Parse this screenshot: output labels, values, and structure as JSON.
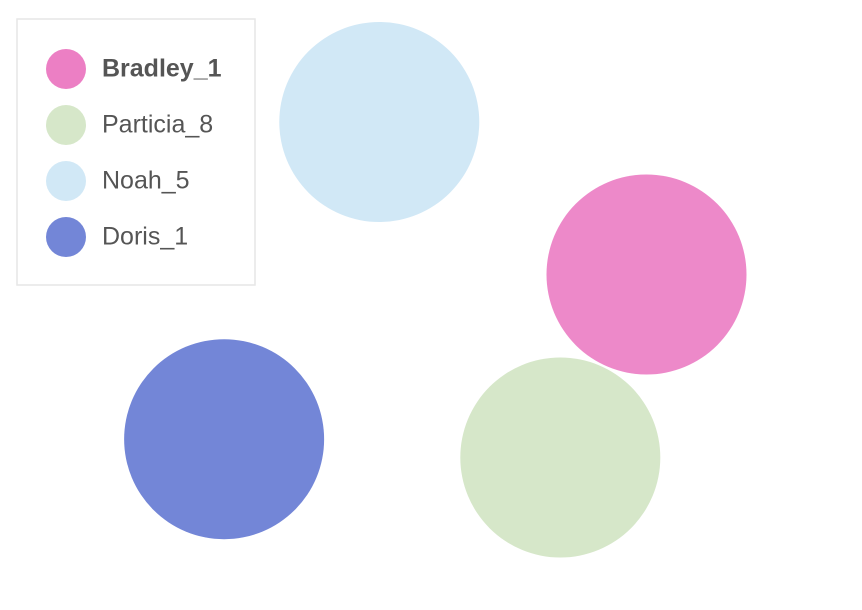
{
  "chart_data": {
    "type": "bubble",
    "title": "",
    "legend_position": "top-left",
    "series": [
      {
        "name": "Bradley_1",
        "color": "#ec7fc4",
        "emphasized": true
      },
      {
        "name": "Particia_8",
        "color": "#d6e7c9",
        "emphasized": false
      },
      {
        "name": "Noah_5",
        "color": "#d1e8f6",
        "emphasized": false
      },
      {
        "name": "Doris_1",
        "color": "#7386d7",
        "emphasized": false
      }
    ],
    "points": [
      {
        "series": "Noah_5",
        "x": 0.44,
        "y": 0.8
      },
      {
        "series": "Doris_1",
        "x": 0.26,
        "y": 0.28
      },
      {
        "series": "Particia_8",
        "x": 0.65,
        "y": 0.25
      },
      {
        "series": "Bradley_1",
        "x": 0.75,
        "y": 0.55
      }
    ],
    "xlim": [
      0,
      1
    ],
    "ylim": [
      0,
      1
    ],
    "grid": false,
    "axes_visible": false
  }
}
